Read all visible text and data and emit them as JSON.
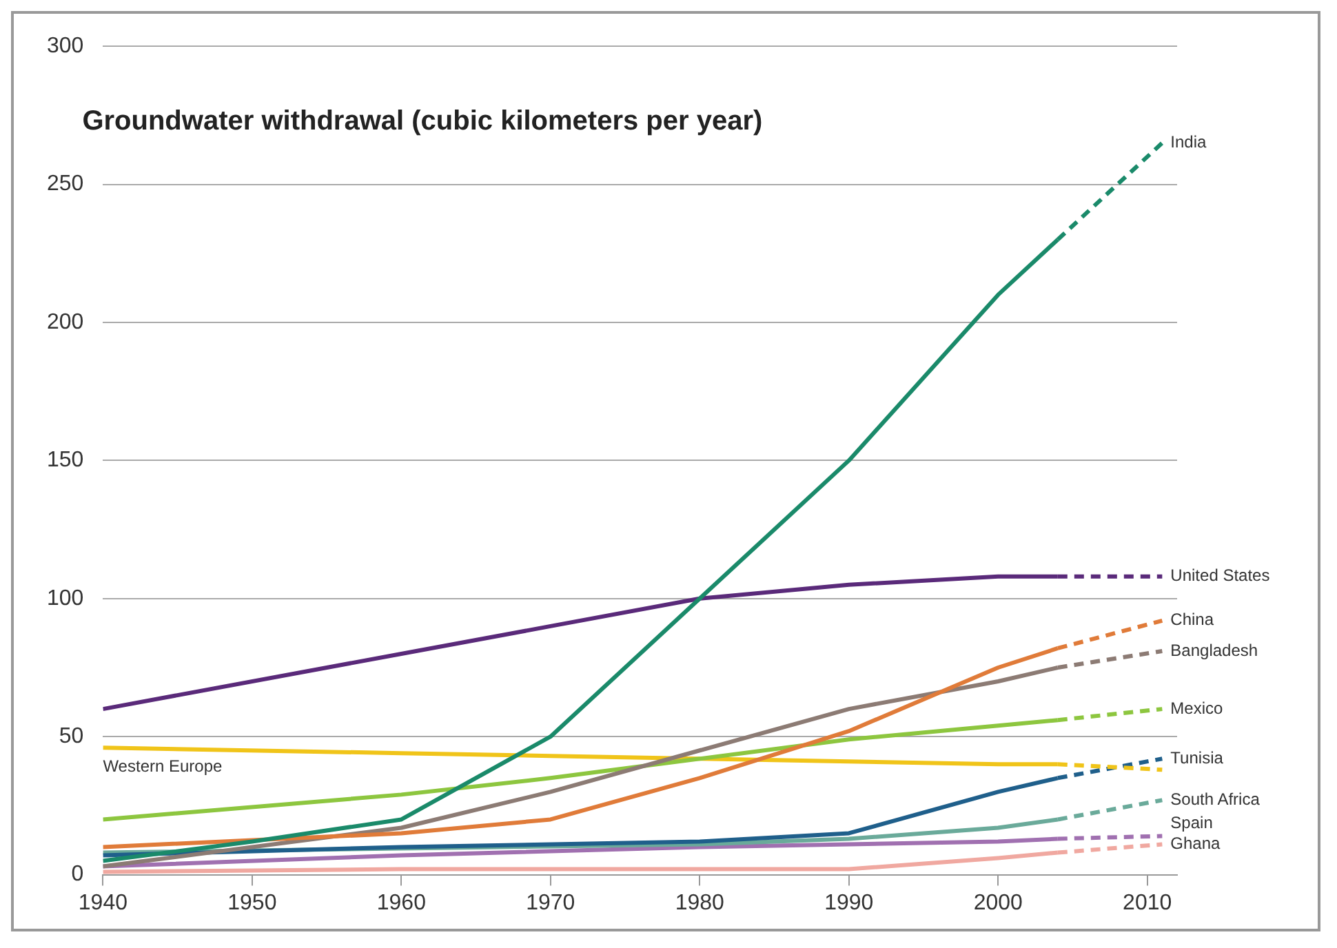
{
  "chart_data": {
    "type": "line",
    "title": "Groundwater withdrawal (cubic kilometers per year)",
    "xlim": [
      1940,
      2012
    ],
    "xticks": [
      1940,
      1950,
      1960,
      1970,
      1980,
      1990,
      2000,
      2010
    ],
    "ylim": [
      0,
      300
    ],
    "yticks": [
      0,
      50,
      100,
      150,
      200,
      250,
      300
    ],
    "grid": "y",
    "legend": false,
    "marker": "none",
    "series": [
      {
        "name": null,
        "color": "#1a8a6a",
        "line_style": "solid",
        "x": [
          1940,
          1950,
          1960,
          1970,
          1980,
          1990,
          2000,
          2004
        ],
        "values": [
          5,
          12,
          20,
          50,
          100,
          150,
          210,
          230
        ]
      },
      {
        "name": "India",
        "color": "#1a8a6a",
        "line_style": "dashed",
        "x": [
          2004,
          2011
        ],
        "values": [
          230,
          265
        ]
      },
      {
        "name": null,
        "color": "#5a2a7a",
        "line_style": "solid",
        "x": [
          1940,
          1960,
          1970,
          1980,
          1990,
          2000,
          2004
        ],
        "values": [
          60,
          80,
          90,
          100,
          105,
          108,
          108
        ]
      },
      {
        "name": "United States",
        "color": "#5a2a7a",
        "line_style": "dashed",
        "x": [
          2004,
          2011
        ],
        "values": [
          108,
          108
        ]
      },
      {
        "name": null,
        "color": "#e07b39",
        "line_style": "solid",
        "x": [
          1940,
          1960,
          1970,
          1980,
          1990,
          2000,
          2004
        ],
        "values": [
          10,
          15,
          20,
          35,
          52,
          75,
          82
        ]
      },
      {
        "name": "China",
        "color": "#e07b39",
        "line_style": "dashed",
        "x": [
          2004,
          2011
        ],
        "values": [
          82,
          92
        ]
      },
      {
        "name": null,
        "color": "#8c7b74",
        "line_style": "solid",
        "x": [
          1940,
          1960,
          1970,
          1980,
          1990,
          2000,
          2004
        ],
        "values": [
          3,
          17,
          30,
          45,
          60,
          70,
          75
        ]
      },
      {
        "name": "Bangladesh",
        "color": "#8c7b74",
        "line_style": "dashed",
        "x": [
          2004,
          2011
        ],
        "values": [
          75,
          81
        ]
      },
      {
        "name": null,
        "color": "#8dc63f",
        "line_style": "solid",
        "x": [
          1940,
          1960,
          1970,
          1980,
          1990,
          2000,
          2004
        ],
        "values": [
          20,
          29,
          35,
          42,
          49,
          54,
          56
        ]
      },
      {
        "name": "Mexico",
        "color": "#8dc63f",
        "line_style": "dashed",
        "x": [
          2004,
          2011
        ],
        "values": [
          56,
          60
        ]
      },
      {
        "name": "Western Europe",
        "color": "#f0c419",
        "line_style": "solid",
        "x": [
          1940,
          1960,
          1970,
          1980,
          1990,
          2000,
          2004
        ],
        "values": [
          46,
          44,
          43,
          42,
          41,
          40,
          40
        ]
      },
      {
        "name": null,
        "color": "#f0c419",
        "line_style": "dashed",
        "x": [
          2004,
          2011
        ],
        "values": [
          40,
          38
        ]
      },
      {
        "name": null,
        "color": "#1f5f8b",
        "line_style": "solid",
        "x": [
          1940,
          1960,
          1980,
          1990,
          2000,
          2004
        ],
        "values": [
          7,
          10,
          12,
          15,
          30,
          35
        ]
      },
      {
        "name": "Tunisia",
        "color": "#1f5f8b",
        "line_style": "dashed",
        "x": [
          2004,
          2011
        ],
        "values": [
          35,
          42
        ]
      },
      {
        "name": null,
        "color": "#6aaa9a",
        "line_style": "solid",
        "x": [
          1940,
          1980,
          1990,
          2000,
          2004
        ],
        "values": [
          8,
          11,
          13,
          17,
          20
        ]
      },
      {
        "name": "South Africa",
        "color": "#6aaa9a",
        "line_style": "dashed",
        "x": [
          2004,
          2011
        ],
        "values": [
          20,
          27
        ]
      },
      {
        "name": null,
        "color": "#a070b0",
        "line_style": "solid",
        "x": [
          1940,
          1960,
          1980,
          1990,
          2000,
          2004
        ],
        "values": [
          3,
          7,
          10,
          11,
          12,
          13
        ]
      },
      {
        "name": "Spain",
        "color": "#a070b0",
        "line_style": "dashed",
        "x": [
          2004,
          2011
        ],
        "values": [
          13,
          14
        ]
      },
      {
        "name": null,
        "color": "#f0a8a0",
        "line_style": "solid",
        "x": [
          1940,
          1960,
          1980,
          1990,
          2000,
          2004
        ],
        "values": [
          1,
          2,
          2,
          2,
          6,
          8
        ]
      },
      {
        "name": "Ghana",
        "color": "#f0a8a0",
        "line_style": "dashed",
        "x": [
          2004,
          2011
        ],
        "values": [
          8,
          11
        ]
      }
    ]
  }
}
